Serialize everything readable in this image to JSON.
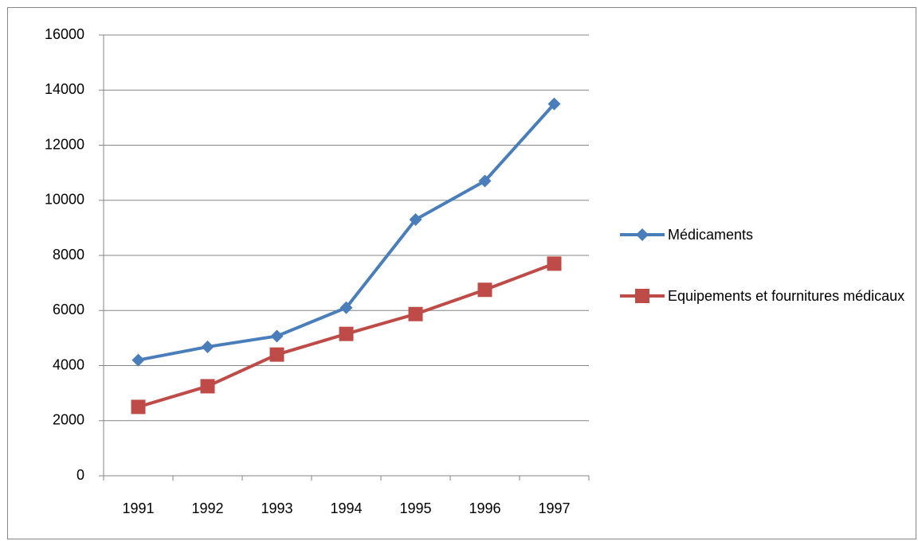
{
  "chart_data": {
    "type": "line",
    "categories": [
      "1991",
      "1992",
      "1993",
      "1994",
      "1995",
      "1996",
      "1997"
    ],
    "series": [
      {
        "name": "Médicaments",
        "color": "#4a7ebb",
        "marker": "diamond",
        "values": [
          4200,
          4680,
          5070,
          6100,
          9300,
          10700,
          13500
        ]
      },
      {
        "name": "Equipements et fournitures médicaux",
        "color": "#be4b48",
        "marker": "square",
        "values": [
          2500,
          3250,
          4400,
          5150,
          5870,
          6750,
          7700
        ]
      }
    ],
    "ylim": [
      0,
      16000
    ],
    "yticks": [
      0,
      2000,
      4000,
      6000,
      8000,
      10000,
      12000,
      14000,
      16000
    ],
    "grid": true,
    "legend": "right"
  }
}
